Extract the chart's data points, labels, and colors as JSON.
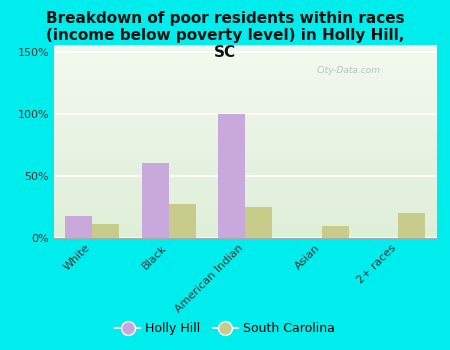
{
  "title": "Breakdown of poor residents within races\n(income below poverty level) in Holly Hill,\nSC",
  "categories": [
    "White",
    "Black",
    "American Indian",
    "Asian",
    "2+ races"
  ],
  "holly_hill": [
    18,
    60,
    100,
    0,
    0
  ],
  "south_carolina": [
    11,
    27,
    25,
    10,
    20
  ],
  "holly_hill_color": "#c9a8dc",
  "sc_color": "#c8cc8a",
  "bg_color": "#00eded",
  "plot_bg_color": "#e4f0dc",
  "ylim": [
    0,
    155
  ],
  "yticks": [
    0,
    50,
    100,
    150
  ],
  "ytick_labels": [
    "0%",
    "50%",
    "100%",
    "150%"
  ],
  "bar_width": 0.35,
  "title_fontsize": 11,
  "watermark": "City-Data.com",
  "legend_holly": "Holly Hill",
  "legend_sc": "South Carolina"
}
